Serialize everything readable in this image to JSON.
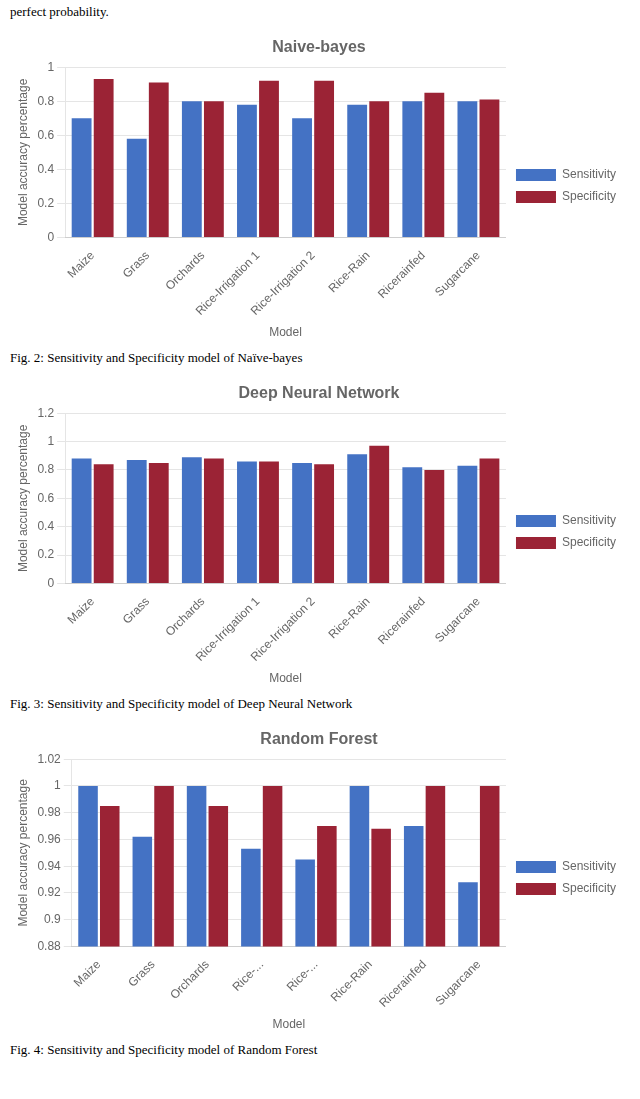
{
  "annotations": [
    "perfect probability."
  ],
  "chart_data": [
    {
      "type": "bar",
      "title": "Naive-bayes",
      "categories": [
        "Maize",
        "Grass",
        "Orchards",
        "Rice-Irrigation 1",
        "Rice-Irrigation 2",
        "Rice-Rain",
        "Ricerainfed",
        "Sugarcane"
      ],
      "series": [
        {
          "name": "Sensitivity",
          "color": "#4472C4",
          "values": [
            0.7,
            0.58,
            0.8,
            0.78,
            0.7,
            0.78,
            0.8,
            0.8
          ]
        },
        {
          "name": "Specificity",
          "color": "#9B2335",
          "values": [
            0.93,
            0.91,
            0.8,
            0.92,
            0.92,
            0.8,
            0.85,
            0.81
          ]
        }
      ],
      "x_label": "Model",
      "y_label": "Model accuracy percentage",
      "ylim": [
        0,
        1.0
      ],
      "yticks": [
        0,
        0.2,
        0.4,
        0.6,
        0.8,
        1
      ],
      "grid": true,
      "legend": "right",
      "annotations": [
        "Fig. 2: Sensitivity and Specificity model of Naïve-bayes"
      ]
    },
    {
      "type": "bar",
      "title": "Deep Neural Network",
      "categories": [
        "Maize",
        "Grass",
        "Orchards",
        "Rice-Irrigation 1",
        "Rice-Irrigation 2",
        "Rice-Rain",
        "Ricerainfed",
        "Sugarcane"
      ],
      "series": [
        {
          "name": "Sensitivity",
          "color": "#4472C4",
          "values": [
            0.88,
            0.87,
            0.89,
            0.86,
            0.85,
            0.91,
            0.82,
            0.83
          ]
        },
        {
          "name": "Specificity",
          "color": "#9B2335",
          "values": [
            0.84,
            0.85,
            0.88,
            0.86,
            0.84,
            0.97,
            0.8,
            0.88
          ]
        }
      ],
      "x_label": "Model",
      "y_label": "Model accuracy percentage",
      "ylim": [
        0,
        1.2
      ],
      "yticks": [
        0,
        0.2,
        0.4,
        0.6,
        0.8,
        1,
        1.2
      ],
      "grid": true,
      "legend": "right",
      "annotations": [
        "Fig. 3: Sensitivity and Specificity model of Deep Neural Network"
      ]
    },
    {
      "type": "bar",
      "title": "Random Forest",
      "categories": [
        "Maize",
        "Grass",
        "Orchards",
        "Rice-...",
        "Rice-...",
        "Rice-Rain",
        "Ricerainfed",
        "Sugarcane"
      ],
      "series": [
        {
          "name": "Sensitivity",
          "color": "#4472C4",
          "values": [
            1.0,
            0.962,
            1.0,
            0.953,
            0.945,
            1.0,
            0.97,
            0.928
          ]
        },
        {
          "name": "Specificity",
          "color": "#9B2335",
          "values": [
            0.985,
            1.0,
            0.985,
            1.0,
            0.97,
            0.968,
            1.0,
            1.0
          ]
        }
      ],
      "x_label": "Model",
      "y_label": "Model accuracy percentage",
      "ylim": [
        0.88,
        1.02
      ],
      "yticks": [
        0.88,
        0.9,
        0.92,
        0.94,
        0.96,
        0.98,
        1,
        1.02
      ],
      "grid": true,
      "legend": "right",
      "annotations": [
        "Fig. 4: Sensitivity and Specificity model of Random Forest"
      ]
    }
  ]
}
